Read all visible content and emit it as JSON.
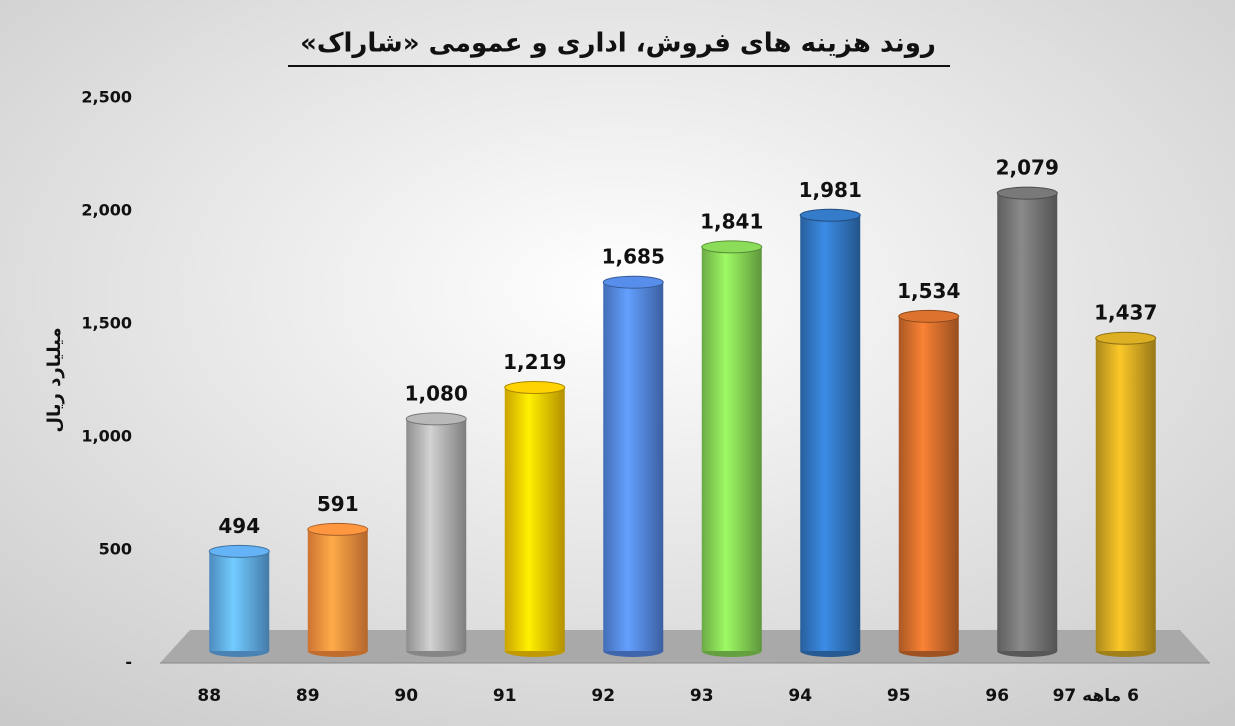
{
  "chart_data": {
    "type": "bar",
    "title": "روند هزینه های فروش، اداری و عمومی «شاراک»",
    "y_label": "میلیارد ریال",
    "categories": [
      "88",
      "89",
      "90",
      "91",
      "92",
      "93",
      "94",
      "95",
      "96",
      "6 ماهه 97"
    ],
    "values": [
      494,
      591,
      1080,
      1219,
      1685,
      1841,
      1981,
      1534,
      2079,
      1437
    ],
    "value_labels": [
      "494",
      "591",
      "1,080",
      "1,219",
      "1,685",
      "1,841",
      "1,981",
      "1,534",
      "2,079",
      "1,437"
    ],
    "colors": [
      "#5ba3e0",
      "#f0883a",
      "#a8a8a8",
      "#f0c000",
      "#4f80d6",
      "#7ec850",
      "#2f70b8",
      "#c8682a",
      "#6e6e6e",
      "#c9a020"
    ],
    "ylim": [
      0,
      2500
    ],
    "yticks": [
      {
        "value": 0,
        "label": "-"
      },
      500,
      {
        "value": 1000,
        "label": "1,000"
      },
      {
        "value": 1500,
        "label": "1,500"
      },
      {
        "value": 2000,
        "label": "2,000"
      },
      {
        "value": 2500,
        "label": "2,500"
      }
    ]
  }
}
